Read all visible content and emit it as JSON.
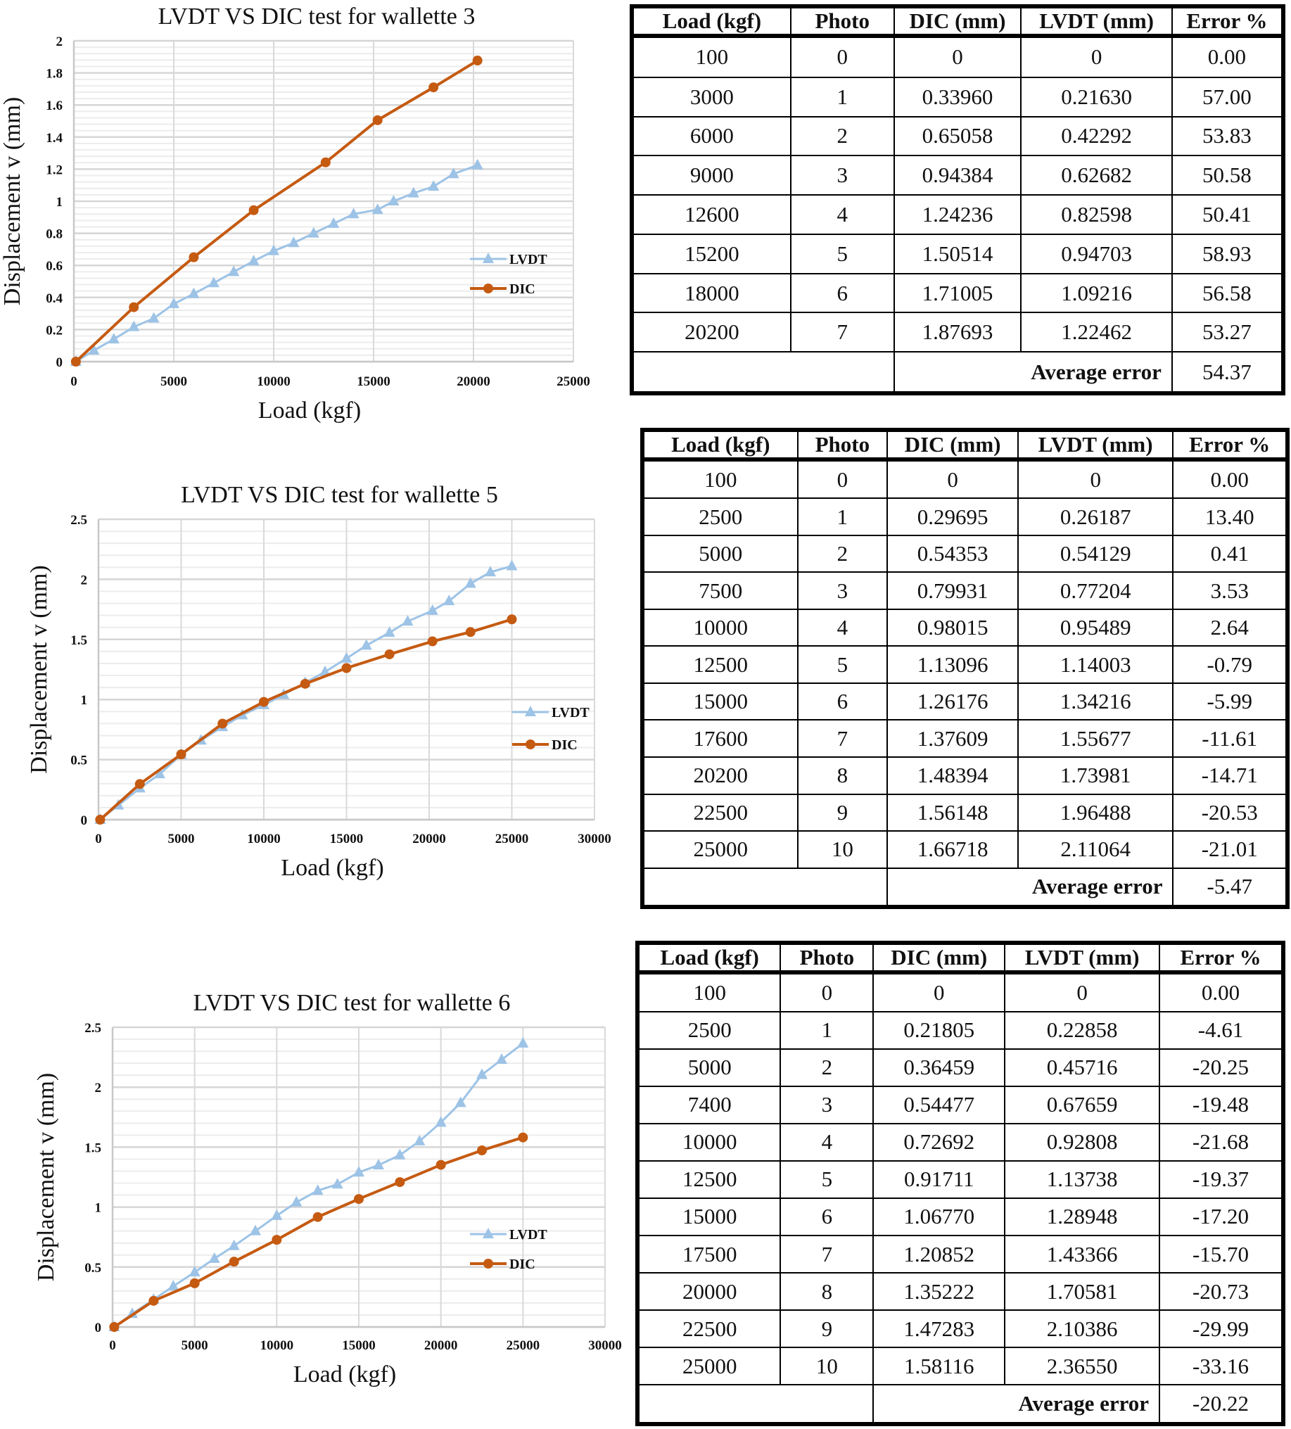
{
  "chart_data": [
    {
      "type": "line",
      "title": "LVDT VS DIC test for wallette 3",
      "xlabel": "Load (kgf)",
      "ylabel": "Displacement v (mm)",
      "xlim": [
        0,
        25000
      ],
      "ylim": [
        0,
        2
      ],
      "xticks": [
        0,
        5000,
        10000,
        15000,
        20000,
        25000
      ],
      "yticks": [
        0,
        0.2,
        0.4,
        0.6,
        0.8,
        1,
        1.2,
        1.4,
        1.6,
        1.8,
        2
      ],
      "ytick_labels": [
        "0",
        "0.2",
        "0.4",
        "0.6",
        "0.8",
        "1",
        "1.2",
        "1.4",
        "1.6",
        "1.8",
        "2"
      ],
      "grid": true,
      "legend": "right",
      "series": [
        {
          "name": "LVDT",
          "color": "#9dc3e6",
          "marker": "triangle",
          "x": [
            100,
            1000,
            2000,
            3000,
            4000,
            5000,
            6000,
            7000,
            8000,
            9000,
            10000,
            11000,
            12000,
            13000,
            14000,
            15200,
            16000,
            17000,
            18000,
            19000,
            20200
          ],
          "y": [
            0,
            0.07,
            0.14,
            0.2163,
            0.27,
            0.36,
            0.42292,
            0.49,
            0.56,
            0.62682,
            0.69,
            0.74,
            0.8,
            0.86,
            0.92,
            0.94703,
            1.0,
            1.05,
            1.09216,
            1.17,
            1.22462
          ]
        },
        {
          "name": "DIC",
          "color": "#c55a11",
          "marker": "circle",
          "x": [
            100,
            3000,
            6000,
            9000,
            12600,
            15200,
            18000,
            20200
          ],
          "y": [
            0,
            0.3396,
            0.65058,
            0.94384,
            1.24236,
            1.50514,
            1.71005,
            1.87693
          ]
        }
      ]
    },
    {
      "type": "line",
      "title": "LVDT VS DIC test for wallette 5",
      "xlabel": "Load (kgf)",
      "ylabel": "Displacement v (mm)",
      "xlim": [
        0,
        30000
      ],
      "ylim": [
        0,
        2.5
      ],
      "xticks": [
        0,
        5000,
        10000,
        15000,
        20000,
        25000,
        30000
      ],
      "yticks": [
        0,
        0.5,
        1,
        1.5,
        2,
        2.5
      ],
      "ytick_labels": [
        "0",
        "0.5",
        "1",
        "1.5",
        "2",
        "2.5"
      ],
      "grid": true,
      "legend": "right",
      "series": [
        {
          "name": "LVDT",
          "color": "#9dc3e6",
          "marker": "triangle",
          "x": [
            100,
            1200,
            2500,
            3700,
            5000,
            6200,
            7500,
            8700,
            10000,
            11200,
            12500,
            13700,
            15000,
            16200,
            17600,
            18700,
            20200,
            21200,
            22500,
            23700,
            25000
          ],
          "y": [
            0,
            0.12,
            0.26187,
            0.38,
            0.54129,
            0.66,
            0.77204,
            0.87,
            0.95489,
            1.04,
            1.14003,
            1.23,
            1.34216,
            1.45,
            1.55677,
            1.65,
            1.73981,
            1.82,
            1.96488,
            2.06,
            2.11064
          ]
        },
        {
          "name": "DIC",
          "color": "#c55a11",
          "marker": "circle",
          "x": [
            100,
            2500,
            5000,
            7500,
            10000,
            12500,
            15000,
            17600,
            20200,
            22500,
            25000
          ],
          "y": [
            0,
            0.29695,
            0.54353,
            0.79931,
            0.98015,
            1.13096,
            1.26176,
            1.37609,
            1.48394,
            1.56148,
            1.66718
          ]
        }
      ]
    },
    {
      "type": "line",
      "title": "LVDT VS DIC test for wallette 6",
      "xlabel": "Load (kgf)",
      "ylabel": "Displacement v (mm)",
      "xlim": [
        0,
        30000
      ],
      "ylim": [
        0,
        2.5
      ],
      "xticks": [
        0,
        5000,
        10000,
        15000,
        20000,
        25000,
        30000
      ],
      "yticks": [
        0,
        0.5,
        1,
        1.5,
        2,
        2.5
      ],
      "ytick_labels": [
        "0",
        "0.5",
        "1",
        "1.5",
        "2",
        "2.5"
      ],
      "grid": true,
      "legend": "right",
      "series": [
        {
          "name": "LVDT",
          "color": "#9dc3e6",
          "marker": "triangle",
          "x": [
            100,
            1200,
            2500,
            3700,
            5000,
            6200,
            7400,
            8700,
            10000,
            11200,
            12500,
            13700,
            15000,
            16200,
            17500,
            18700,
            20000,
            21200,
            22500,
            23700,
            25000
          ],
          "y": [
            0,
            0.11,
            0.22858,
            0.34,
            0.45716,
            0.57,
            0.67659,
            0.8,
            0.92808,
            1.04,
            1.13738,
            1.19,
            1.28948,
            1.35,
            1.43366,
            1.55,
            1.70581,
            1.87,
            2.10386,
            2.23,
            2.3655
          ]
        },
        {
          "name": "DIC",
          "color": "#c55a11",
          "marker": "circle",
          "x": [
            100,
            2500,
            5000,
            7400,
            10000,
            12500,
            15000,
            17500,
            20000,
            22500,
            25000
          ],
          "y": [
            0,
            0.21805,
            0.36459,
            0.54477,
            0.72692,
            0.91711,
            1.0677,
            1.20852,
            1.35222,
            1.47283,
            1.58116
          ]
        }
      ]
    }
  ],
  "tables": [
    {
      "headers": [
        "Load (kgf)",
        "Photo",
        "DIC (mm)",
        "LVDT (mm)",
        "Error %"
      ],
      "rows": [
        [
          "100",
          "0",
          "0",
          "0",
          "0.00"
        ],
        [
          "3000",
          "1",
          "0.33960",
          "0.21630",
          "57.00"
        ],
        [
          "6000",
          "2",
          "0.65058",
          "0.42292",
          "53.83"
        ],
        [
          "9000",
          "3",
          "0.94384",
          "0.62682",
          "50.58"
        ],
        [
          "12600",
          "4",
          "1.24236",
          "0.82598",
          "50.41"
        ],
        [
          "15200",
          "5",
          "1.50514",
          "0.94703",
          "58.93"
        ],
        [
          "18000",
          "6",
          "1.71005",
          "1.09216",
          "56.58"
        ],
        [
          "20200",
          "7",
          "1.87693",
          "1.22462",
          "53.27"
        ]
      ],
      "average_label": "Average error",
      "average_value": "54.37"
    },
    {
      "headers": [
        "Load (kgf)",
        "Photo",
        "DIC (mm)",
        "LVDT (mm)",
        "Error %"
      ],
      "rows": [
        [
          "100",
          "0",
          "0",
          "0",
          "0.00"
        ],
        [
          "2500",
          "1",
          "0.29695",
          "0.26187",
          "13.40"
        ],
        [
          "5000",
          "2",
          "0.54353",
          "0.54129",
          "0.41"
        ],
        [
          "7500",
          "3",
          "0.79931",
          "0.77204",
          "3.53"
        ],
        [
          "10000",
          "4",
          "0.98015",
          "0.95489",
          "2.64"
        ],
        [
          "12500",
          "5",
          "1.13096",
          "1.14003",
          "-0.79"
        ],
        [
          "15000",
          "6",
          "1.26176",
          "1.34216",
          "-5.99"
        ],
        [
          "17600",
          "7",
          "1.37609",
          "1.55677",
          "-11.61"
        ],
        [
          "20200",
          "8",
          "1.48394",
          "1.73981",
          "-14.71"
        ],
        [
          "22500",
          "9",
          "1.56148",
          "1.96488",
          "-20.53"
        ],
        [
          "25000",
          "10",
          "1.66718",
          "2.11064",
          "-21.01"
        ]
      ],
      "average_label": "Average error",
      "average_value": "-5.47"
    },
    {
      "headers": [
        "Load (kgf)",
        "Photo",
        "DIC (mm)",
        "LVDT (mm)",
        "Error %"
      ],
      "rows": [
        [
          "100",
          "0",
          "0",
          "0",
          "0.00"
        ],
        [
          "2500",
          "1",
          "0.21805",
          "0.22858",
          "-4.61"
        ],
        [
          "5000",
          "2",
          "0.36459",
          "0.45716",
          "-20.25"
        ],
        [
          "7400",
          "3",
          "0.54477",
          "0.67659",
          "-19.48"
        ],
        [
          "10000",
          "4",
          "0.72692",
          "0.92808",
          "-21.68"
        ],
        [
          "12500",
          "5",
          "0.91711",
          "1.13738",
          "-19.37"
        ],
        [
          "15000",
          "6",
          "1.06770",
          "1.28948",
          "-17.20"
        ],
        [
          "17500",
          "7",
          "1.20852",
          "1.43366",
          "-15.70"
        ],
        [
          "20000",
          "8",
          "1.35222",
          "1.70581",
          "-20.73"
        ],
        [
          "22500",
          "9",
          "1.47283",
          "2.10386",
          "-29.99"
        ],
        [
          "25000",
          "10",
          "1.58116",
          "2.36550",
          "-33.16"
        ]
      ],
      "average_label": "Average error",
      "average_value": "-20.22"
    }
  ]
}
